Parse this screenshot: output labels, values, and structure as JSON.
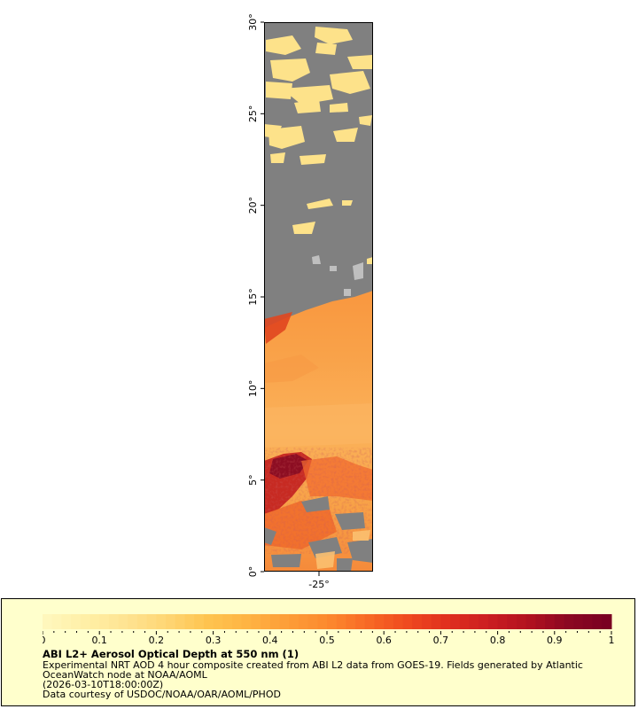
{
  "map": {
    "lat_ticks": [
      "0°",
      "5°",
      "10°",
      "15°",
      "20°",
      "25°",
      "30°"
    ],
    "lon_ticks": [
      "-25°"
    ],
    "colors": {
      "land_or_cloud": "#808080",
      "no_data": "#bfbfbf",
      "low_aod": "#fde28a",
      "mid_aod": "#fdb04a",
      "high_aod": "#f26b2e",
      "very_high_aod": "#a3122a"
    }
  },
  "legend": {
    "tick_labels": [
      "0",
      "0.1",
      "0.2",
      "0.3",
      "0.4",
      "0.5",
      "0.6",
      "0.7",
      "0.8",
      "0.9",
      "1"
    ],
    "colors": [
      "#fff7bc",
      "#ffefa5",
      "#fee391",
      "#fed674",
      "#fec44f",
      "#feb443",
      "#fd9d38",
      "#fc8a2e",
      "#f86a25",
      "#ef4a1f",
      "#e0301e",
      "#cc1e21",
      "#b3121f",
      "#8c0822",
      "#7a0022"
    ],
    "title": "ABI L2+ Aerosol Optical Depth at 550 nm (1)",
    "description_line1": "Experimental NRT AOD 4 hour composite created from ABI L2 data from GOES-19. Fields generated by Atlantic",
    "description_line2": "OceanWatch node at NOAA/AOML",
    "date": "(2026-03-10T18:00:00Z)",
    "credit": "Data courtesy of USDOC/NOAA/OAR/AOML/PHOD"
  }
}
